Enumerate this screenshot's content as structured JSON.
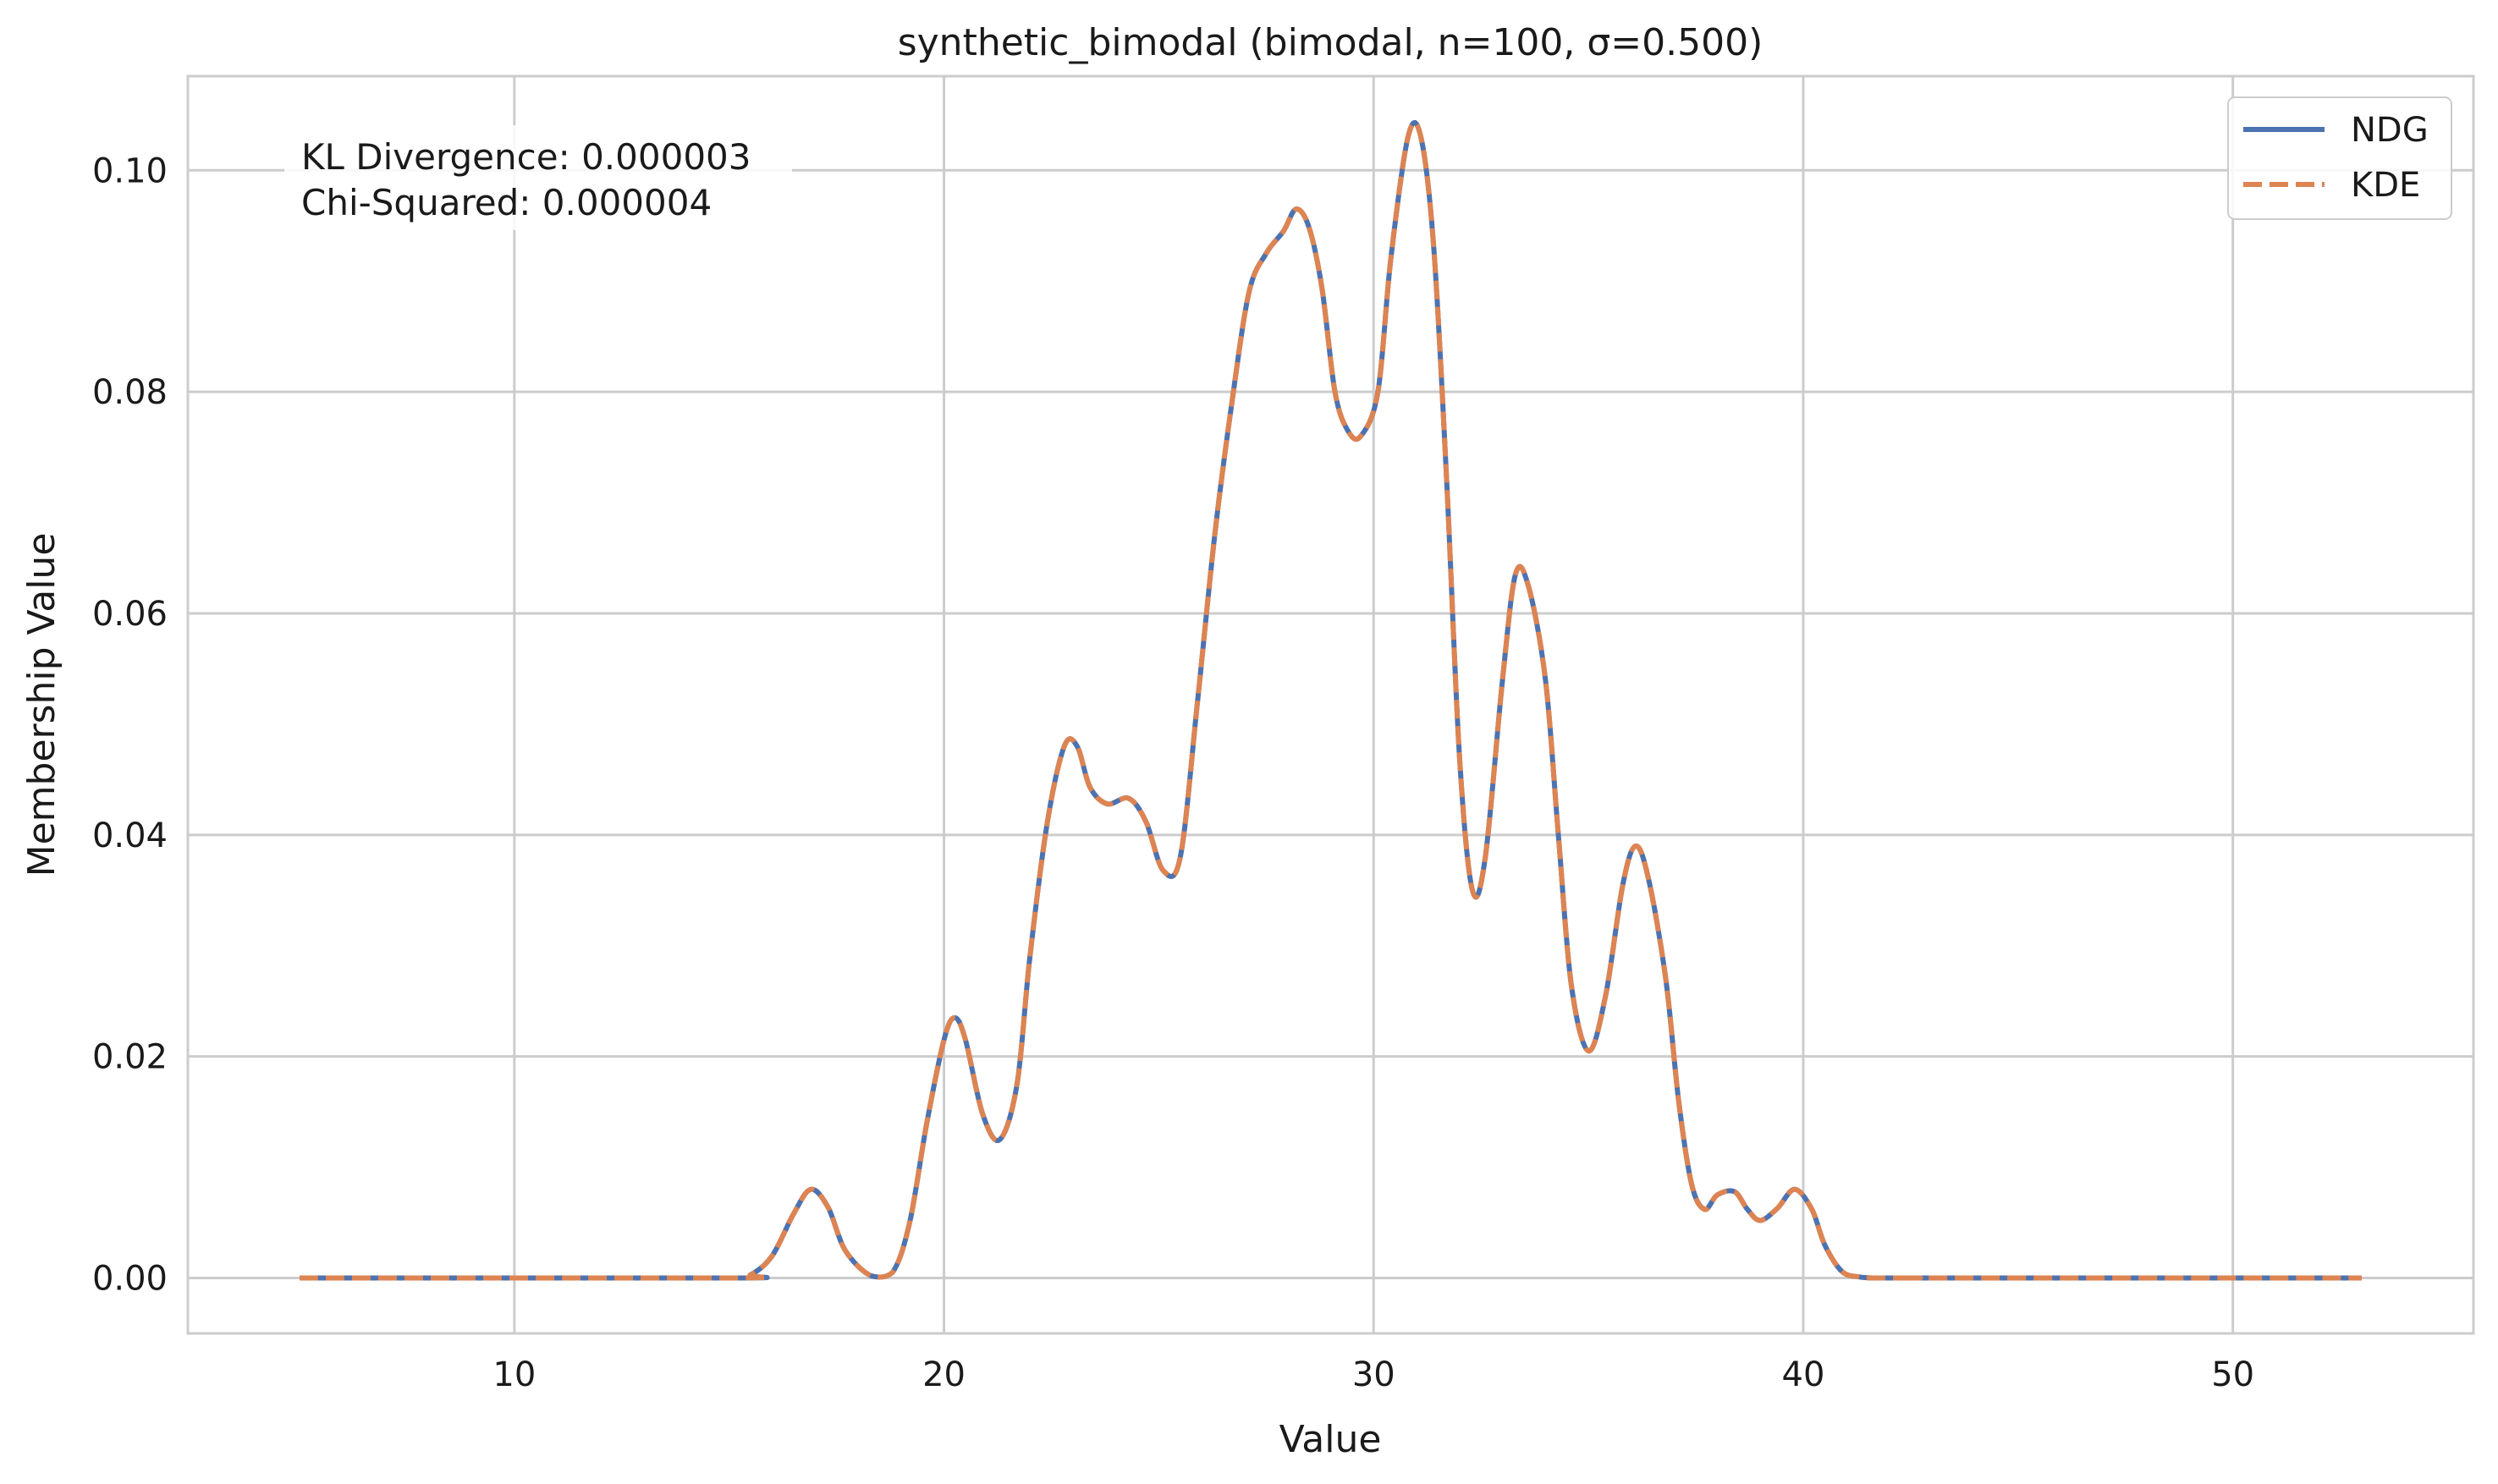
{
  "chart_data": {
    "type": "line",
    "title": "synthetic_bimodal (bimodal, n=100, σ=0.500)",
    "xlabel": "Value",
    "ylabel": "Membership Value",
    "xlim": [
      2.4,
      55.6
    ],
    "ylim": [
      -0.005,
      0.1085
    ],
    "xticks": [
      10,
      20,
      30,
      40,
      50
    ],
    "xtick_labels": [
      "10",
      "20",
      "30",
      "40",
      "50"
    ],
    "yticks": [
      0,
      0.02,
      0.04,
      0.06,
      0.08,
      0.1
    ],
    "ytick_labels": [
      "0.00",
      "0.02",
      "0.04",
      "0.06",
      "0.08",
      "0.10"
    ],
    "grid": true,
    "legend_position": "top-right",
    "annotations": [
      {
        "text": "KL Divergence: 0.000003"
      },
      {
        "text": "Chi-Squared: 0.000004"
      }
    ],
    "x": [
      5,
      15,
      15.5,
      16,
      16.5,
      16.9,
      17.3,
      17.7,
      18.3,
      18.8,
      19.2,
      19.6,
      20,
      20.25,
      20.5,
      20.9,
      21.3,
      21.7,
      22,
      22.4,
      22.8,
      23.1,
      23.4,
      23.8,
      24.3,
      24.7,
      25.1,
      25.5,
      25.9,
      26.3,
      26.7,
      27.1,
      27.5,
      27.9,
      28.2,
      28.5,
      28.8,
      29.1,
      29.4,
      29.7,
      30.1,
      30.4,
      30.8,
      31.1,
      31.4,
      31.7,
      32,
      32.3,
      32.6,
      33,
      33.3,
      33.6,
      34,
      34.3,
      34.6,
      35,
      35.4,
      35.8,
      36.1,
      36.4,
      36.8,
      37.1,
      37.4,
      37.7,
      38,
      38.4,
      38.7,
      39,
      39.4,
      39.8,
      40.2,
      40.5,
      40.9,
      41.3,
      41.7,
      42.2,
      42.7,
      43.5,
      53
    ],
    "series": [
      {
        "name": "NDG",
        "color": "#4c72b0",
        "style": "solid",
        "values": [
          0,
          0,
          0.0003,
          0.002,
          0.0058,
          0.008,
          0.0064,
          0.0025,
          0.0002,
          0.0005,
          0.005,
          0.014,
          0.0215,
          0.0235,
          0.0215,
          0.0148,
          0.0125,
          0.0175,
          0.029,
          0.041,
          0.048,
          0.048,
          0.0443,
          0.0428,
          0.0433,
          0.0412,
          0.0368,
          0.038,
          0.052,
          0.067,
          0.079,
          0.089,
          0.0925,
          0.0945,
          0.0965,
          0.0948,
          0.0893,
          0.08,
          0.0765,
          0.076,
          0.08,
          0.092,
          0.103,
          0.103,
          0.093,
          0.072,
          0.047,
          0.035,
          0.038,
          0.054,
          0.0635,
          0.0625,
          0.054,
          0.04,
          0.0265,
          0.0205,
          0.0255,
          0.0355,
          0.039,
          0.036,
          0.027,
          0.016,
          0.0085,
          0.0062,
          0.0075,
          0.0078,
          0.0062,
          0.0052,
          0.0063,
          0.008,
          0.0062,
          0.003,
          0.0006,
          0.0001,
          0,
          0,
          0,
          0,
          0
        ]
      },
      {
        "name": "KDE",
        "color": "#dd8452",
        "style": "dashed",
        "values": [
          0,
          0,
          0.0003,
          0.002,
          0.0058,
          0.008,
          0.0064,
          0.0025,
          0.0002,
          0.0005,
          0.005,
          0.014,
          0.0215,
          0.0235,
          0.0215,
          0.0148,
          0.0125,
          0.0175,
          0.029,
          0.041,
          0.048,
          0.048,
          0.0443,
          0.0428,
          0.0433,
          0.0412,
          0.0368,
          0.038,
          0.052,
          0.067,
          0.079,
          0.089,
          0.0925,
          0.0945,
          0.0965,
          0.0948,
          0.0893,
          0.08,
          0.0765,
          0.076,
          0.08,
          0.092,
          0.103,
          0.103,
          0.093,
          0.072,
          0.047,
          0.035,
          0.038,
          0.054,
          0.0635,
          0.0625,
          0.054,
          0.04,
          0.0265,
          0.0205,
          0.0255,
          0.0355,
          0.039,
          0.036,
          0.027,
          0.016,
          0.0085,
          0.0062,
          0.0075,
          0.0078,
          0.0062,
          0.0052,
          0.0063,
          0.008,
          0.0062,
          0.003,
          0.0006,
          0.0001,
          0,
          0,
          0,
          0,
          0
        ]
      }
    ]
  }
}
